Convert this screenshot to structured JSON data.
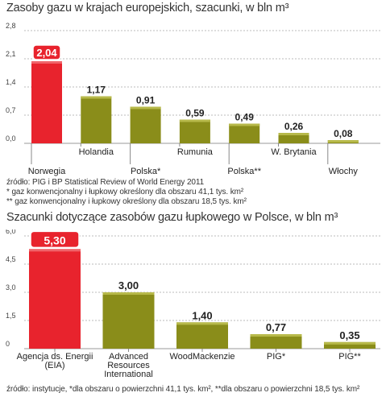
{
  "chart_data": [
    {
      "type": "bar",
      "title": "Zasoby gazu w krajach europejskich, szacunki, w bln m³",
      "categories": [
        "Norwegia",
        "Holandia",
        "Polska*",
        "Rumunia",
        "Polska**",
        "W. Brytania",
        "Włochy"
      ],
      "values": [
        2.04,
        1.17,
        0.91,
        0.59,
        0.49,
        0.26,
        0.08
      ],
      "value_labels": [
        "2,04",
        "1,17",
        "0,91",
        "0,59",
        "0,49",
        "0,26",
        "0,08"
      ],
      "yticks": [
        "0,0",
        "0,7",
        "1,4",
        "2,1",
        "2,8"
      ],
      "ylim": [
        0,
        2.8
      ],
      "grid": true,
      "colors": {
        "highlight": "#e8232d",
        "bar": "#8a8d1a",
        "bar_light": "#b7b94a"
      },
      "highlight_index": 0
    },
    {
      "type": "bar",
      "title": "Szacunki dotyczące zasobów gazu łupkowego w Polsce, w bln m³",
      "categories": [
        "Agencja ds. Energii (EIA)",
        "Advanced Resources International",
        "WoodMackenzie",
        "PIG*",
        "PIG**"
      ],
      "values": [
        5.3,
        3.0,
        1.4,
        0.77,
        0.35
      ],
      "value_labels": [
        "5,30",
        "3,00",
        "1,40",
        "0,77",
        "0,35"
      ],
      "yticks": [
        "0",
        "1,5",
        "3,0",
        "4,5",
        "6,0"
      ],
      "ylim": [
        0,
        6.0
      ],
      "grid": true,
      "colors": {
        "highlight": "#e8232d",
        "bar": "#8a8d1a",
        "bar_light": "#b7b94a"
      },
      "highlight_index": 0
    }
  ],
  "notes1": {
    "line1": "źródło: PIG i BP Statistical Review of World Energy 2011",
    "line2": "* gaz konwencjonalny i łupkowy określony dla obszaru 41,1 tys. km²",
    "line3": "** gaz konwencjonalny i łupkowy określony dla obszaru 18,5 tys. km²"
  },
  "notes2": {
    "line1": "źródło: instytucje, *dla obszaru o powierzchni 41,1 tys. km², **dla obszaru o powierzchni 18,5 tys. km²"
  }
}
